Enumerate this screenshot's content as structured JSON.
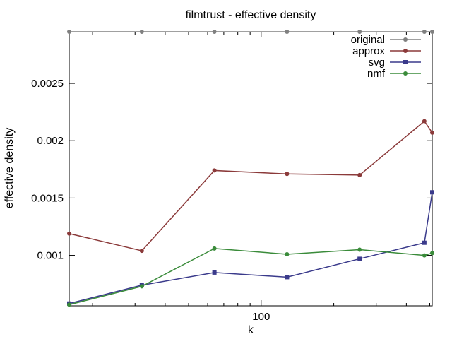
{
  "chart_data": {
    "type": "line",
    "title": "filmtrust - effective density",
    "xlabel": "k",
    "ylabel": "effective density",
    "xscale": "log",
    "xlim": [
      16,
      512
    ],
    "ylim": [
      0.00056,
      0.00295
    ],
    "yticks": [
      0.001,
      0.0015,
      0.002,
      0.0025
    ],
    "ytick_labels": [
      "0.001",
      "0.0015",
      "0.002",
      "0.0025"
    ],
    "xticks": [
      100
    ],
    "xtick_labels": [
      "100"
    ],
    "grid": false,
    "legend_position": "top-right",
    "x": [
      16,
      32,
      64,
      128,
      256,
      475,
      512
    ],
    "series": [
      {
        "name": "original",
        "color": "#808080",
        "marker": "circle",
        "values": [
          0.00295,
          0.00295,
          0.00295,
          0.00295,
          0.00295,
          0.00295,
          0.00295
        ]
      },
      {
        "name": "approx",
        "color": "#8b3a3a",
        "marker": "circle",
        "values": [
          0.00119,
          0.00104,
          0.00174,
          0.00171,
          0.0017,
          0.00217,
          0.00207
        ]
      },
      {
        "name": "svg",
        "color": "#3a3a8b",
        "marker": "square",
        "values": [
          0.00058,
          0.00074,
          0.00085,
          0.00081,
          0.00097,
          0.00111,
          0.00155
        ]
      },
      {
        "name": "nmf",
        "color": "#3a8b3a",
        "marker": "circle",
        "values": [
          0.00057,
          0.00073,
          0.00106,
          0.00101,
          0.00105,
          0.001,
          0.00102
        ]
      }
    ]
  }
}
